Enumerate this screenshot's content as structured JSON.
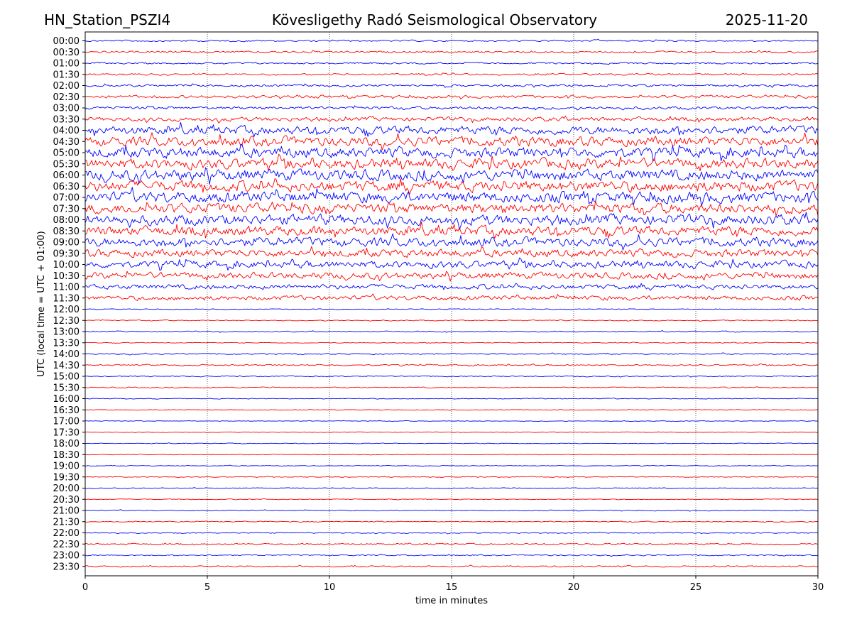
{
  "chart_data": {
    "type": "line",
    "title_left": "HN_Station_PSZI4",
    "title_center": "Kövesligethy Radó Seismological Observatory",
    "title_right": "2025-11-20",
    "xlabel": "time in minutes",
    "ylabel": "UTC (local time = UTC + 01:00)",
    "xlim": [
      0,
      30
    ],
    "x_ticks": [
      0,
      5,
      10,
      15,
      20,
      25,
      30
    ],
    "x_tick_labels": [
      "0",
      "5",
      "10",
      "15",
      "20",
      "25",
      "30"
    ],
    "grid": "vertical dotted at 5-minute ticks",
    "row_labels": [
      "00:00",
      "00:30",
      "01:00",
      "01:30",
      "02:00",
      "02:30",
      "03:00",
      "03:30",
      "04:00",
      "04:30",
      "05:00",
      "05:30",
      "06:00",
      "06:30",
      "07:00",
      "07:30",
      "08:00",
      "08:30",
      "09:00",
      "09:30",
      "10:00",
      "10:30",
      "11:00",
      "11:30",
      "12:00",
      "12:30",
      "13:00",
      "13:30",
      "14:00",
      "14:30",
      "15:00",
      "15:30",
      "16:00",
      "16:30",
      "17:00",
      "17:30",
      "18:00",
      "18:30",
      "19:00",
      "19:30",
      "20:00",
      "20:30",
      "21:00",
      "21:30",
      "22:00",
      "22:30",
      "23:00",
      "23:30"
    ],
    "trace_colors": [
      "#0000ff",
      "#ff0000"
    ],
    "relative_amplitude_per_row": [
      0.5,
      0.6,
      0.5,
      0.6,
      0.7,
      0.9,
      0.9,
      1.3,
      2.6,
      3.0,
      3.2,
      3.2,
      3.4,
      3.4,
      3.4,
      3.2,
      3.2,
      3.0,
      2.8,
      2.4,
      2.2,
      2.0,
      1.5,
      1.4,
      0.25,
      0.3,
      0.35,
      0.25,
      0.4,
      0.45,
      0.3,
      0.3,
      0.25,
      0.2,
      0.2,
      0.2,
      0.2,
      0.2,
      0.2,
      0.25,
      0.25,
      0.25,
      0.3,
      0.3,
      0.35,
      0.4,
      0.4,
      0.45
    ]
  }
}
